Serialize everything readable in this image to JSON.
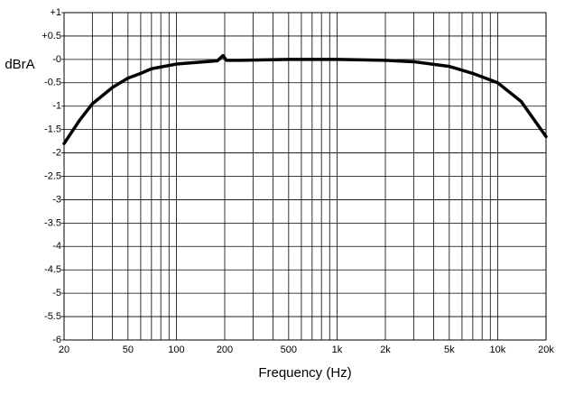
{
  "chart_data": {
    "type": "line",
    "xlabel": "Frequency (Hz)",
    "ylabel": "dBrA",
    "xscale": "log",
    "grid": true,
    "xlim": [
      20,
      20000
    ],
    "ylim": [
      -6,
      1
    ],
    "xticks": [
      20,
      50,
      100,
      200,
      500,
      {
        "value": 1000,
        "label": "1k"
      },
      {
        "value": 2000,
        "label": "2k"
      },
      {
        "value": 5000,
        "label": "5k"
      },
      {
        "value": 10000,
        "label": "10k"
      },
      {
        "value": 20000,
        "label": "20k"
      }
    ],
    "xminor": [
      30,
      40,
      60,
      70,
      80,
      90,
      300,
      400,
      600,
      700,
      800,
      900,
      3000,
      4000,
      6000,
      7000,
      8000,
      9000
    ],
    "yticks": [
      {
        "value": 1,
        "label": "+1"
      },
      {
        "value": 0.5,
        "label": "+0.5"
      },
      {
        "value": 0,
        "label": "-0"
      },
      -0.5,
      -1,
      -1.5,
      -2,
      -2.5,
      -3,
      -3.5,
      -4,
      -4.5,
      -5,
      -5.5,
      -6
    ],
    "series": [
      {
        "color": "#000000",
        "x": [
          20,
          25,
          30,
          40,
          50,
          60,
          70,
          100,
          150,
          180,
          195,
          205,
          250,
          500,
          1000,
          2000,
          3000,
          5000,
          7000,
          10000,
          14000,
          20000
        ],
        "values": [
          -1.8,
          -1.3,
          -0.95,
          -0.6,
          -0.4,
          -0.3,
          -0.2,
          -0.1,
          -0.05,
          -0.03,
          0.08,
          -0.02,
          -0.02,
          0,
          0,
          -0.02,
          -0.05,
          -0.15,
          -0.3,
          -0.5,
          -0.9,
          -1.65
        ]
      }
    ]
  }
}
